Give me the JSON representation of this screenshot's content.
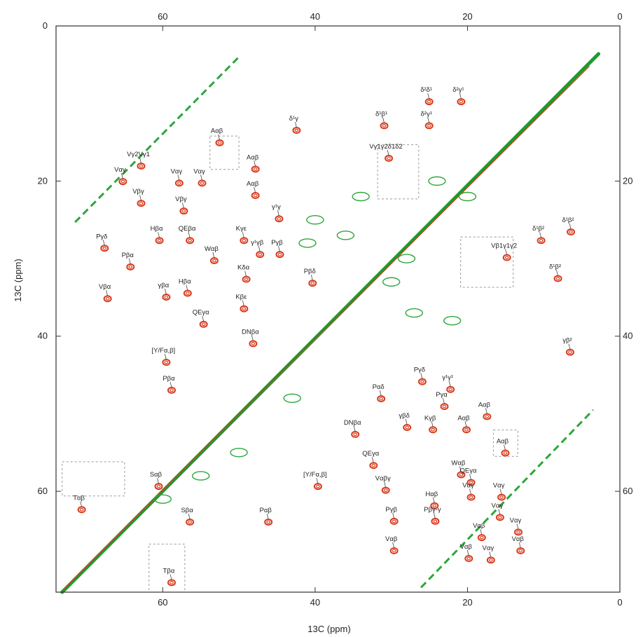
{
  "chart_data": {
    "type": "scatter",
    "xlabel": "13C (ppm)",
    "ylabel": "13C (ppm)",
    "x_reversed": true,
    "y_downward": true,
    "xlim": [
      74,
      0
    ],
    "ylim": [
      0,
      73
    ],
    "x_ticks_bottom": [
      "60",
      "40",
      "20",
      "0"
    ],
    "x_ticks_top": [
      "60",
      "40",
      "20",
      "0"
    ],
    "y_ticks_left": [
      "0",
      "20",
      "40",
      "60"
    ],
    "y_ticks_right": [
      "20",
      "40",
      "60"
    ],
    "colors": {
      "red_spectrum": "#d93b1e",
      "green_spectrum": "#2da63a",
      "diagonal": "#1c9a2e",
      "box": "#999999"
    },
    "annotations": [
      {
        "text": "δ²δ¹",
        "x": 25.4,
        "y": 8.5
      },
      {
        "text": "δ²γ¹",
        "x": 21.2,
        "y": 8.5
      },
      {
        "text": "δ¹β¹",
        "x": 31.3,
        "y": 11.6
      },
      {
        "text": "δ²γ¹",
        "x": 25.4,
        "y": 11.6
      },
      {
        "text": "δ¹γ",
        "x": 42.8,
        "y": 12.2
      },
      {
        "text": "Aαβ",
        "x": 52.9,
        "y": 13.8
      },
      {
        "text": "Vγ2Vγ1",
        "x": 63.2,
        "y": 16.8
      },
      {
        "text": "Vγ1γ2δ1δ2",
        "x": 30.7,
        "y": 15.8
      },
      {
        "text": "Aαβ",
        "x": 48.2,
        "y": 17.2
      },
      {
        "text": "Vαγ",
        "x": 65.6,
        "y": 18.8
      },
      {
        "text": "Vαγ",
        "x": 58.2,
        "y": 19.0
      },
      {
        "text": "Vαγ",
        "x": 55.2,
        "y": 19.0
      },
      {
        "text": "Aαβ",
        "x": 48.2,
        "y": 20.6
      },
      {
        "text": "Vβγ",
        "x": 63.2,
        "y": 21.6
      },
      {
        "text": "Vβγ",
        "x": 57.6,
        "y": 22.6
      },
      {
        "text": "γ¹γ",
        "x": 45.1,
        "y": 23.6
      },
      {
        "text": "Hβα",
        "x": 60.8,
        "y": 26.4
      },
      {
        "text": "QEβα",
        "x": 56.8,
        "y": 26.4
      },
      {
        "text": "Kγε",
        "x": 49.7,
        "y": 26.4
      },
      {
        "text": "Pγδ",
        "x": 68.0,
        "y": 27.4
      },
      {
        "text": "Wαβ",
        "x": 53.6,
        "y": 29.0
      },
      {
        "text": "γ¹γβ",
        "x": 47.6,
        "y": 28.2
      },
      {
        "text": "Pγβ",
        "x": 45.0,
        "y": 28.2
      },
      {
        "text": "Pβα",
        "x": 64.6,
        "y": 29.8
      },
      {
        "text": "Kδα",
        "x": 49.4,
        "y": 31.4
      },
      {
        "text": "Pβδ",
        "x": 40.7,
        "y": 31.9
      },
      {
        "text": "Vβα",
        "x": 67.6,
        "y": 33.9
      },
      {
        "text": "γβα",
        "x": 59.9,
        "y": 33.7
      },
      {
        "text": "Hβα",
        "x": 57.1,
        "y": 33.2
      },
      {
        "text": "Kβε",
        "x": 49.7,
        "y": 35.2
      },
      {
        "text": "QEγα",
        "x": 55.0,
        "y": 37.2
      },
      {
        "text": "DNβα",
        "x": 48.5,
        "y": 39.7
      },
      {
        "text": "[Y/Fα,β]",
        "x": 59.9,
        "y": 42.1
      },
      {
        "text": "Vβ1γ1γ2",
        "x": 15.2,
        "y": 28.6
      },
      {
        "text": "δ¹β²",
        "x": 10.7,
        "y": 26.4
      },
      {
        "text": "δ¹β²",
        "x": 6.8,
        "y": 25.3
      },
      {
        "text": "δ¹β²",
        "x": 8.5,
        "y": 31.3
      },
      {
        "text": "γβ²",
        "x": 6.9,
        "y": 40.8
      },
      {
        "text": "Pβα",
        "x": 59.2,
        "y": 45.7
      },
      {
        "text": "Pγδ",
        "x": 26.3,
        "y": 44.6
      },
      {
        "text": "γ¹γ¹",
        "x": 22.6,
        "y": 45.6
      },
      {
        "text": "Pαδ",
        "x": 31.7,
        "y": 46.8
      },
      {
        "text": "Pγα",
        "x": 23.4,
        "y": 47.8
      },
      {
        "text": "Aαβ",
        "x": 17.8,
        "y": 49.1
      },
      {
        "text": "γβδ",
        "x": 28.3,
        "y": 50.5
      },
      {
        "text": "Kγβ",
        "x": 24.9,
        "y": 50.8
      },
      {
        "text": "Aαβ",
        "x": 20.5,
        "y": 50.8
      },
      {
        "text": "DNβα",
        "x": 35.1,
        "y": 51.4
      },
      {
        "text": "Aαβ",
        "x": 15.4,
        "y": 53.8
      },
      {
        "text": "QEγα",
        "x": 32.7,
        "y": 55.4
      },
      {
        "text": "Wαβ",
        "x": 21.2,
        "y": 56.6
      },
      {
        "text": "QEγα",
        "x": 19.9,
        "y": 57.6
      },
      {
        "text": "[Y/Fα,β]",
        "x": 40.0,
        "y": 58.1
      },
      {
        "text": "Vαβγ",
        "x": 31.1,
        "y": 58.6
      },
      {
        "text": "Vαγ",
        "x": 19.9,
        "y": 59.5
      },
      {
        "text": "Vαγ",
        "x": 15.9,
        "y": 59.5
      },
      {
        "text": "Hαβ",
        "x": 24.7,
        "y": 60.6
      },
      {
        "text": "Vαγ",
        "x": 16.1,
        "y": 62.1
      },
      {
        "text": "Pγβ",
        "x": 30.0,
        "y": 62.6
      },
      {
        "text": "Pβγ-γ",
        "x": 24.6,
        "y": 62.6
      },
      {
        "text": "Vαγ",
        "x": 13.7,
        "y": 64.0
      },
      {
        "text": "Vαβ",
        "x": 18.5,
        "y": 64.7
      },
      {
        "text": "Vαβ",
        "x": 30.0,
        "y": 66.4
      },
      {
        "text": "Vαβ",
        "x": 20.2,
        "y": 67.4
      },
      {
        "text": "Vαγ",
        "x": 17.3,
        "y": 67.6
      },
      {
        "text": "Vαβ",
        "x": 13.4,
        "y": 66.4
      },
      {
        "text": "Sαβ",
        "x": 60.9,
        "y": 58.1
      },
      {
        "text": "Sβα",
        "x": 56.8,
        "y": 62.7
      },
      {
        "text": "Pαβ",
        "x": 46.5,
        "y": 62.7
      },
      {
        "text": "Tαβ",
        "x": 71.0,
        "y": 61.1
      },
      {
        "text": "Tβα",
        "x": 59.2,
        "y": 70.5
      }
    ]
  }
}
